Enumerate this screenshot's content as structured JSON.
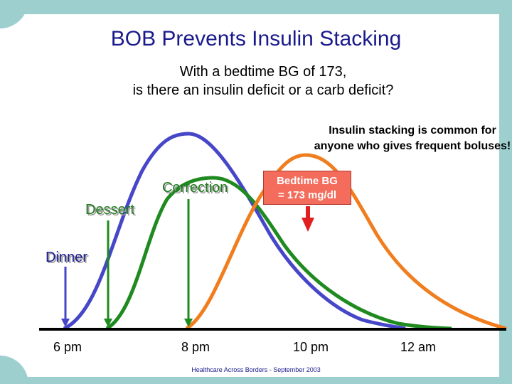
{
  "title": "BOB Prevents Insulin Stacking",
  "subtitle_line1": "With a bedtime BG of 173,",
  "subtitle_line2": "is there an insulin deficit or a carb deficit?",
  "note": "Insulin stacking is common for anyone who gives frequent boluses!",
  "labels": {
    "dessert": "Dessert",
    "correction": "Correction",
    "dinner": "Dinner"
  },
  "bedtime_box": {
    "line1": "Bedtime BG",
    "line2": "= 173 mg/dl"
  },
  "times": [
    "6 pm",
    "8 pm",
    "10 pm",
    "12 am"
  ],
  "footer": "Healthcare Across Borders  -  September 2003",
  "colors": {
    "dinner": "#4646c8",
    "dessert": "#1f8a1f",
    "correction": "#f07d1e",
    "frame": "#9ecfcf",
    "title": "#1a1a8c",
    "arrow": "#e02020"
  }
}
